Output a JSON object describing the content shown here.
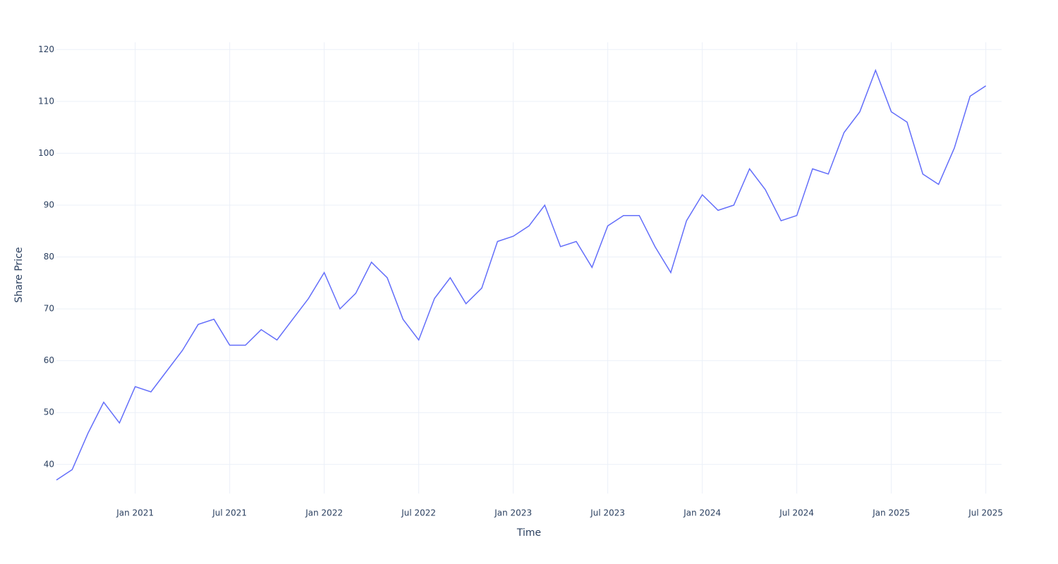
{
  "chart_data": {
    "type": "line",
    "x_label": "Time",
    "y_label": "Share Price",
    "x": [
      "2020-08",
      "2020-09",
      "2020-10",
      "2020-11",
      "2020-12",
      "2021-01",
      "2021-02",
      "2021-03",
      "2021-04",
      "2021-05",
      "2021-06",
      "2021-07",
      "2021-08",
      "2021-09",
      "2021-10",
      "2021-11",
      "2021-12",
      "2022-01",
      "2022-02",
      "2022-03",
      "2022-04",
      "2022-05",
      "2022-06",
      "2022-07",
      "2022-08",
      "2022-09",
      "2022-10",
      "2022-11",
      "2022-12",
      "2023-01",
      "2023-02",
      "2023-03",
      "2023-04",
      "2023-05",
      "2023-06",
      "2023-07",
      "2023-08",
      "2023-09",
      "2023-10",
      "2023-11",
      "2023-12",
      "2024-01",
      "2024-02",
      "2024-03",
      "2024-04",
      "2024-05",
      "2024-06",
      "2024-07",
      "2024-08",
      "2024-09",
      "2024-10",
      "2024-11",
      "2024-12",
      "2025-01",
      "2025-02",
      "2025-03",
      "2025-04",
      "2025-05",
      "2025-06",
      "2025-07"
    ],
    "series": [
      {
        "name": "Share Price",
        "color": "#636efa",
        "values": [
          37,
          39,
          46,
          52,
          48,
          55,
          54,
          58,
          62,
          67,
          68,
          63,
          63,
          66,
          64,
          68,
          72,
          77,
          70,
          73,
          79,
          76,
          68,
          64,
          72,
          76,
          71,
          74,
          83,
          84,
          86,
          90,
          82,
          83,
          78,
          86,
          88,
          88,
          82,
          77,
          87,
          92,
          89,
          90,
          97,
          93,
          87,
          88,
          97,
          96,
          104,
          108,
          116,
          108,
          106,
          96,
          94,
          101,
          111,
          113
        ]
      }
    ],
    "xlim": [
      "2020-08",
      "2025-08"
    ],
    "xticks": [
      {
        "value": "2021-01",
        "label": "Jan 2021"
      },
      {
        "value": "2021-07",
        "label": "Jul 2021"
      },
      {
        "value": "2022-01",
        "label": "Jan 2022"
      },
      {
        "value": "2022-07",
        "label": "Jul 2022"
      },
      {
        "value": "2023-01",
        "label": "Jan 2023"
      },
      {
        "value": "2023-07",
        "label": "Jul 2023"
      },
      {
        "value": "2024-01",
        "label": "Jan 2024"
      },
      {
        "value": "2024-07",
        "label": "Jul 2024"
      },
      {
        "value": "2025-01",
        "label": "Jan 2025"
      },
      {
        "value": "2025-07",
        "label": "Jul 2025"
      }
    ],
    "ylim": [
      34.4,
      121.4
    ],
    "yticks": [
      40,
      50,
      60,
      70,
      80,
      90,
      100,
      110,
      120
    ],
    "grid": true
  }
}
